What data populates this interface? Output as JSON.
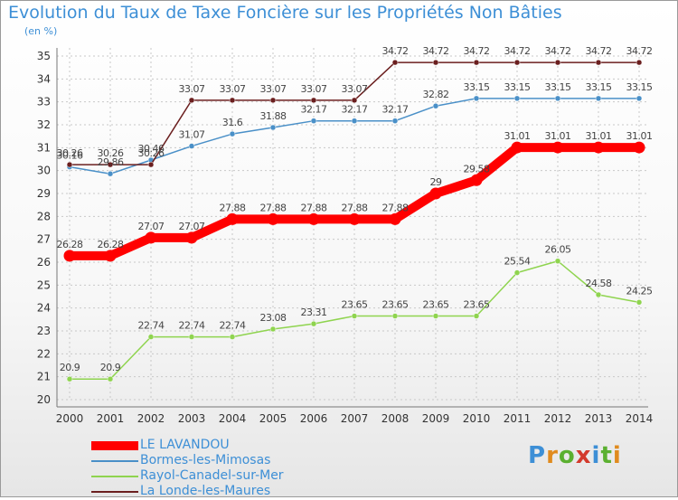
{
  "chart_title": "Evolution du Taux de Taxe Foncière sur les Propriétés Non Bâties",
  "unit_label": "(en %)",
  "colors": {
    "title": "#3d8fd6",
    "grid": "#c8c8c8",
    "axis": "#777777",
    "tick_text": "#333333",
    "value_text": "#444444"
  },
  "logo": {
    "letters": [
      "P",
      "r",
      "o",
      "x",
      "i",
      "t",
      "i"
    ],
    "letter_colors": [
      "#3d8fd6",
      "#e08b1e",
      "#5bb030",
      "#d33a2c",
      "#3d8fd6",
      "#5bb030",
      "#e08b1e"
    ]
  },
  "chart_data": {
    "type": "line",
    "title": "Evolution du Taux de Taxe Foncière sur les Propriétés Non Bâties",
    "ylabel": "(en %)",
    "xlabel": "",
    "x": [
      "2000",
      "2001",
      "2002",
      "2003",
      "2004",
      "2005",
      "2006",
      "2007",
      "2008",
      "2009",
      "2010",
      "2011",
      "2012",
      "2013",
      "2014"
    ],
    "ylim": [
      20,
      35
    ],
    "yticks": [
      "20",
      "21",
      "22",
      "23",
      "24",
      "25",
      "26",
      "27",
      "28",
      "29",
      "30",
      "31",
      "32",
      "33",
      "34",
      "35"
    ],
    "grid": true,
    "legend_position": "bottom-left",
    "series": [
      {
        "name": "LE LAVANDOU",
        "color": "#ff0000",
        "emphasis": "thick",
        "values": [
          26.28,
          26.28,
          27.07,
          27.07,
          27.88,
          27.88,
          27.88,
          27.88,
          27.88,
          29,
          29.58,
          31.01,
          31.01,
          31.01,
          31.01
        ],
        "labels": [
          "26.28",
          "26.28",
          "27.07",
          "27.07",
          "27.88",
          "27.88",
          "27.88",
          "27.88",
          "27.88",
          "29",
          "29.58",
          "31.01",
          "31.01",
          "31.01",
          "31.01"
        ]
      },
      {
        "name": "Bormes-les-Mimosas",
        "color": "#4a90c8",
        "emphasis": "thin",
        "values": [
          30.16,
          29.86,
          30.46,
          31.07,
          31.6,
          31.88,
          32.17,
          32.17,
          32.17,
          32.82,
          33.15,
          33.15,
          33.15,
          33.15,
          33.15
        ],
        "labels": [
          "30.16",
          "29.86",
          "30.46",
          "31.07",
          "31.6",
          "31.88",
          "32.17",
          "32.17",
          "32.17",
          "32.82",
          "33.15",
          "33.15",
          "33.15",
          "33.15",
          "33.15"
        ]
      },
      {
        "name": "Rayol-Canadel-sur-Mer",
        "color": "#8fd44f",
        "emphasis": "thin",
        "values": [
          20.9,
          20.9,
          22.74,
          22.74,
          22.74,
          23.08,
          23.31,
          23.65,
          23.65,
          23.65,
          23.65,
          25.54,
          26.05,
          24.58,
          24.25
        ],
        "labels": [
          "20.9",
          "20.9",
          "22.74",
          "22.74",
          "22.74",
          "23.08",
          "23.31",
          "23.65",
          "23.65",
          "23.65",
          "23.65",
          "25.54",
          "26.05",
          "24.58",
          "24.25"
        ]
      },
      {
        "name": "La Londe-les-Maures",
        "color": "#6b1f1f",
        "emphasis": "thin",
        "values": [
          30.26,
          30.26,
          30.26,
          33.07,
          33.07,
          33.07,
          33.07,
          33.07,
          34.72,
          34.72,
          34.72,
          34.72,
          34.72,
          34.72,
          34.72
        ],
        "labels": [
          "30.26",
          "30.26",
          "30.26",
          "33.07",
          "33.07",
          "33.07",
          "33.07",
          "33.07",
          "34.72",
          "34.72",
          "34.72",
          "34.72",
          "34.72",
          "34.72",
          "34.72"
        ]
      }
    ]
  }
}
